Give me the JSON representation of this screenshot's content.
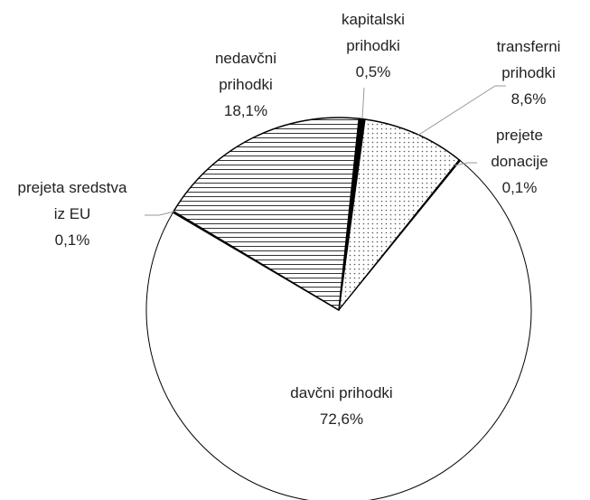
{
  "chart_data": {
    "type": "pie",
    "categories": [
      "kapitalski prihodki",
      "transferni prihodki",
      "prejete donacije",
      "davčni prihodki",
      "prejeta sredstva iz EU",
      "nedavčni prihodki"
    ],
    "values": [
      0.5,
      8.6,
      0.1,
      72.6,
      0.1,
      18.1
    ],
    "value_labels": [
      "0,5%",
      "8,6%",
      "0,1%",
      "72,6%",
      "0,1%",
      "18,1%"
    ],
    "colors": [
      "#000000",
      "#ffffff",
      "#ffffff",
      "#ffffff",
      "#ffffff",
      "#ffffff"
    ]
  }
}
